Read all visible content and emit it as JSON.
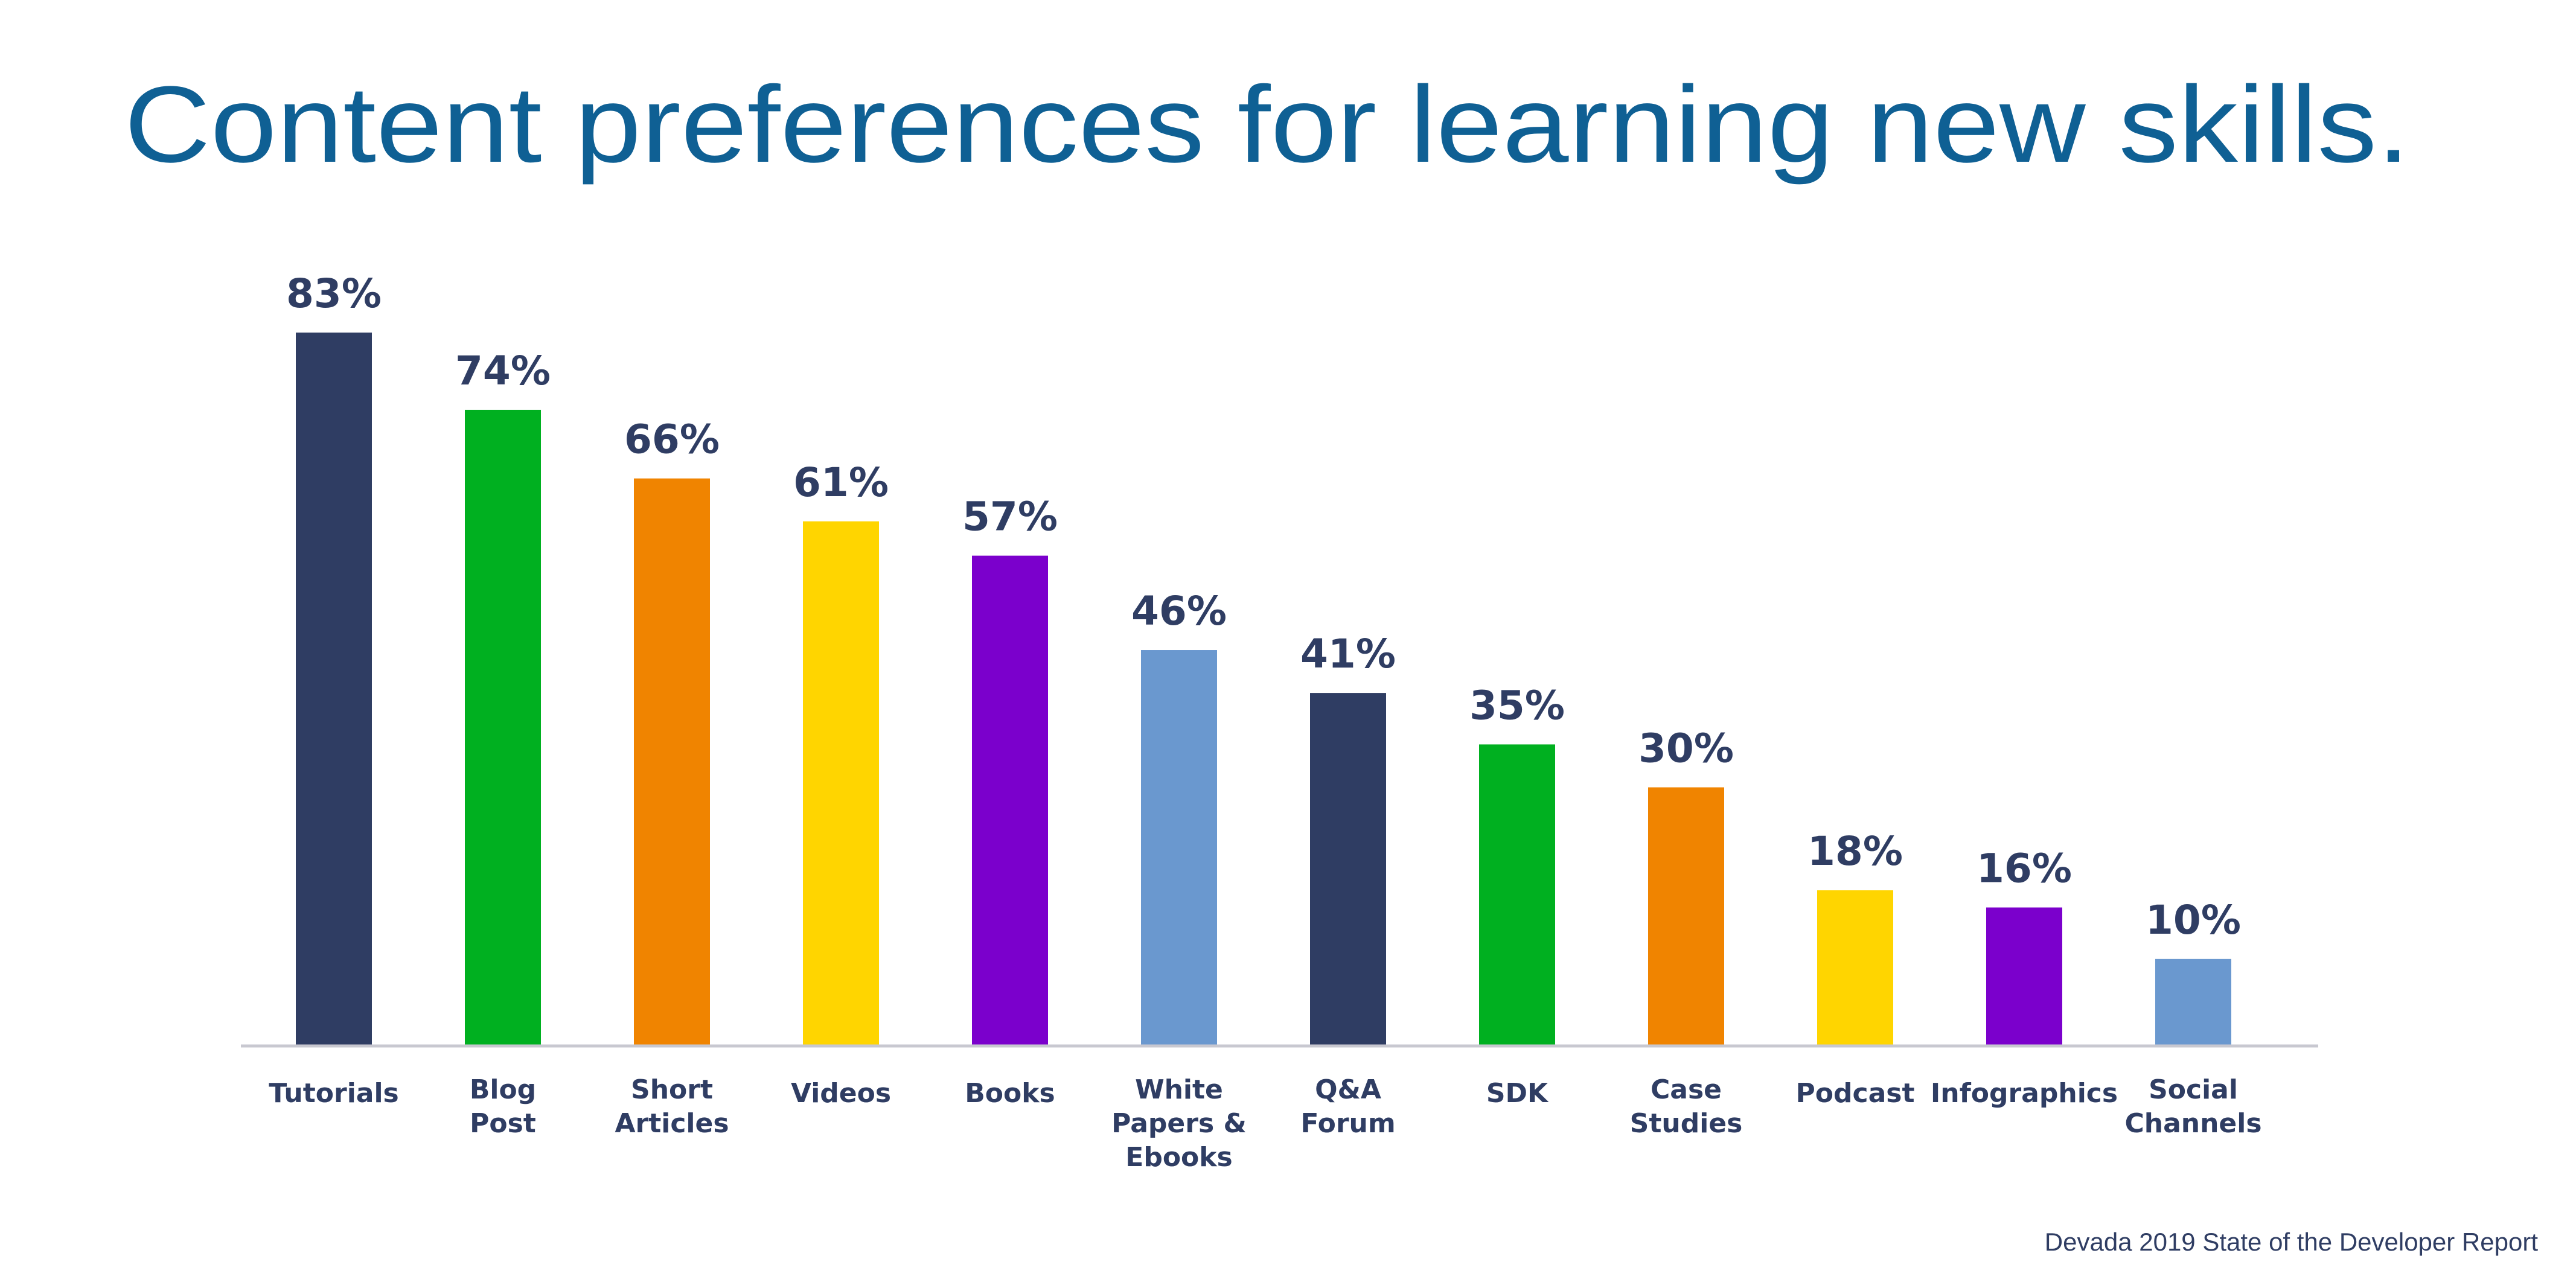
{
  "chart_data": {
    "type": "bar",
    "title": "Content preferences for learning new skills.",
    "xlabel": "",
    "ylabel": "",
    "ylim": [
      0,
      83
    ],
    "grid": false,
    "value_suffix": "%",
    "categories": [
      "Tutorials",
      "Blog Post",
      "Short Articles",
      "Videos",
      "Books",
      "White Papers & Ebooks",
      "Q&A Forum",
      "SDK",
      "Case Studies",
      "Podcast",
      "Infographics",
      "Social Channels"
    ],
    "category_lines": [
      [
        "Tutorials"
      ],
      [
        "Blog",
        "Post"
      ],
      [
        "Short",
        "Articles"
      ],
      [
        "Videos"
      ],
      [
        "Books"
      ],
      [
        "White",
        "Papers &",
        "Ebooks"
      ],
      [
        "Q&A",
        "Forum"
      ],
      [
        "SDK"
      ],
      [
        "Case",
        "Studies"
      ],
      [
        "Podcast"
      ],
      [
        "Infographics"
      ],
      [
        "Social",
        "Channels"
      ]
    ],
    "values": [
      83,
      74,
      66,
      61,
      57,
      46,
      41,
      35,
      30,
      18,
      16,
      10
    ],
    "colors": [
      "#2f3d63",
      "#00b020",
      "#f08400",
      "#ffd500",
      "#7b00cc",
      "#6a98cf",
      "#2f3d63",
      "#00b020",
      "#f08400",
      "#ffd500",
      "#7b00cc",
      "#6a98cf"
    ],
    "source": "Devada 2019 State of the Developer Report"
  }
}
